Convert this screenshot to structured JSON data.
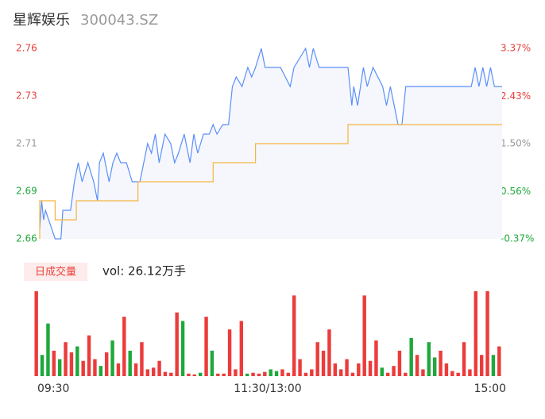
{
  "header": {
    "name": "星辉娱乐",
    "code": "300043.SZ"
  },
  "chart_data": [
    {
      "type": "line",
      "ylim": [
        2.66,
        2.76
      ],
      "yticks": [
        2.66,
        {
          "value": 2.685,
          "label": "2.69"
        },
        2.71,
        {
          "value": 2.735,
          "label": "2.73"
        },
        2.76
      ],
      "y2lim": [
        -0.37,
        3.37
      ],
      "y2ticks": [
        {
          "value": -0.37,
          "label": "-0.37%"
        },
        {
          "value": 0.56,
          "label": "0.56%"
        },
        {
          "value": 1.5,
          "label": "1.50%"
        },
        {
          "value": 2.43,
          "label": "2.43%"
        },
        {
          "value": 3.37,
          "label": "3.37%"
        }
      ],
      "xlim": [
        0,
        240
      ],
      "series": [
        {
          "color": "#5b8ff9",
          "x": [
            0,
            1,
            2,
            3,
            8,
            11,
            12,
            16,
            18,
            20,
            22,
            25,
            28,
            30,
            31,
            33,
            36,
            38,
            40,
            42,
            45,
            48,
            52,
            54,
            56,
            58,
            60,
            62,
            65,
            68,
            70,
            72,
            75,
            78,
            80,
            82,
            85,
            88,
            90,
            92,
            95,
            98,
            100,
            102,
            105,
            108,
            110,
            112,
            115,
            117,
            125,
            130,
            132,
            138,
            140,
            142,
            145,
            160,
            162,
            163,
            165,
            168,
            170,
            173,
            178,
            180,
            182,
            186,
            188,
            190,
            224,
            226,
            228,
            230,
            232,
            234,
            236,
            240
          ],
          "values": [
            2.665,
            2.68,
            2.67,
            2.675,
            2.66,
            2.66,
            2.675,
            2.675,
            2.69,
            2.7,
            2.69,
            2.7,
            2.69,
            2.68,
            2.7,
            2.705,
            2.69,
            2.7,
            2.705,
            2.7,
            2.7,
            2.69,
            2.69,
            2.7,
            2.71,
            2.705,
            2.715,
            2.7,
            2.715,
            2.71,
            2.7,
            2.705,
            2.715,
            2.7,
            2.715,
            2.705,
            2.715,
            2.715,
            2.72,
            2.715,
            2.72,
            2.72,
            2.74,
            2.745,
            2.74,
            2.75,
            2.745,
            2.75,
            2.76,
            2.75,
            2.75,
            2.74,
            2.75,
            2.76,
            2.75,
            2.76,
            2.75,
            2.75,
            2.73,
            2.74,
            2.73,
            2.75,
            2.74,
            2.75,
            2.74,
            2.73,
            2.74,
            2.72,
            2.72,
            2.74,
            2.74,
            2.75,
            2.74,
            2.75,
            2.74,
            2.75,
            2.74,
            2.74
          ]
        },
        {
          "color": "#f5b53f",
          "x": [
            0,
            0,
            8,
            8,
            19,
            19,
            51,
            51,
            90,
            90,
            112,
            112,
            160,
            160,
            240
          ],
          "values": [
            2.66,
            2.68,
            2.68,
            2.67,
            2.67,
            2.68,
            2.68,
            2.69,
            2.69,
            2.7,
            2.7,
            2.71,
            2.71,
            2.72,
            2.72
          ]
        }
      ]
    },
    {
      "type": "bar",
      "badge": "日成交量",
      "summary": "vol: 26.12万手",
      "xlim": [
        0,
        240
      ],
      "xticks": [
        {
          "value": 0,
          "label": "09:30"
        },
        {
          "value": 120,
          "label": "11:30/13:00"
        },
        {
          "value": 240,
          "label": "15:00"
        }
      ],
      "ylim": [
        0,
        100
      ],
      "series": [
        {
          "color": "#ec3b3b",
          "values": [
            100,
            null,
            null,
            30,
            null,
            40,
            28,
            null,
            18,
            48,
            20,
            null,
            28,
            null,
            15,
            70,
            null,
            15,
            40,
            8,
            10,
            18,
            5,
            4,
            75,
            null,
            3,
            2,
            null,
            70,
            null,
            3,
            3,
            55,
            8,
            65,
            null,
            4,
            3,
            5,
            null,
            null,
            8,
            4,
            95,
            20,
            4,
            8,
            40,
            30,
            55,
            15,
            8,
            20,
            4,
            15,
            95,
            18,
            42,
            null,
            4,
            12,
            30,
            4,
            null,
            25,
            8,
            null,
            null,
            30,
            15,
            6,
            4,
            40,
            8,
            100,
            25,
            100,
            null,
            35
          ]
        },
        {
          "color": "#1fa83c",
          "values": [
            null,
            25,
            62,
            null,
            20,
            null,
            null,
            35,
            null,
            null,
            null,
            12,
            null,
            42,
            null,
            null,
            30,
            null,
            null,
            null,
            null,
            null,
            null,
            null,
            null,
            65,
            null,
            null,
            4,
            null,
            30,
            null,
            null,
            null,
            null,
            null,
            3,
            null,
            null,
            null,
            8,
            6,
            null,
            null,
            null,
            null,
            null,
            null,
            null,
            null,
            null,
            null,
            null,
            null,
            null,
            null,
            null,
            null,
            null,
            10,
            null,
            null,
            null,
            null,
            45,
            null,
            null,
            40,
            22,
            null,
            null,
            null,
            null,
            null,
            null,
            null,
            null,
            null,
            25,
            null
          ]
        }
      ]
    }
  ]
}
